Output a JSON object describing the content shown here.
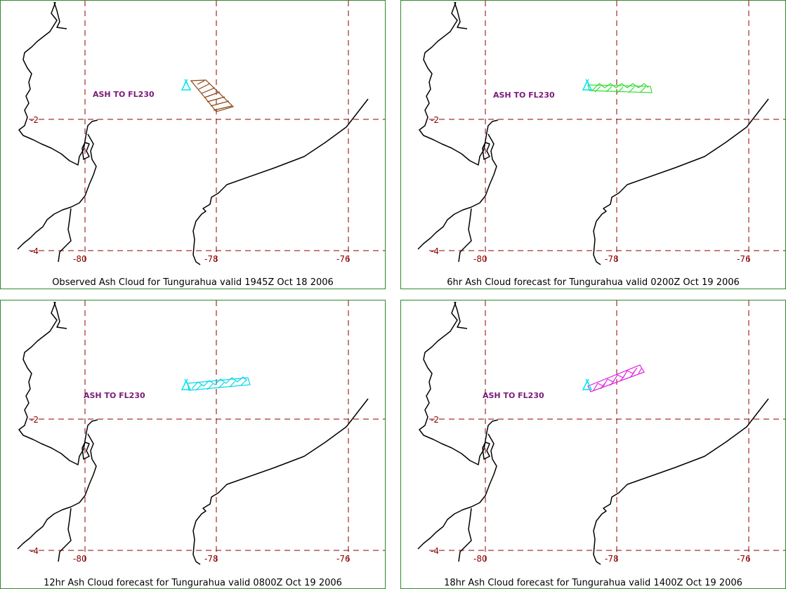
{
  "panels": [
    {
      "caption": "Observed Ash Cloud for Tungurahua valid 1945Z Oct 18 2006",
      "ash_label": "ASH TO FL230",
      "cloud_color": "#8b4513",
      "volcano_color": "#00e5ee",
      "grid_labels": {
        "lat_s2": "-2",
        "lat_s4": "-4",
        "lon_w80": "-80",
        "lon_w78": "-78",
        "lon_w76": "-76"
      }
    },
    {
      "caption": "6hr Ash Cloud forecast for Tungurahua valid 0200Z Oct 19 2006",
      "ash_label": "ASH TO FL230",
      "cloud_color": "#33dd33",
      "volcano_color": "#00e5ee",
      "grid_labels": {
        "lat_s2": "-2",
        "lat_s4": "-4",
        "lon_w80": "-80",
        "lon_w78": "-78",
        "lon_w76": "-76"
      }
    },
    {
      "caption": "12hr Ash Cloud forecast for Tungurahua valid 0800Z Oct 19 2006",
      "ash_label": "ASH TO FL230",
      "cloud_color": "#00d8e8",
      "volcano_color": "#00e5ee",
      "grid_labels": {
        "lat_s2": "-2",
        "lat_s4": "-4",
        "lon_w80": "-80",
        "lon_w78": "-78",
        "lon_w76": "-76"
      }
    },
    {
      "caption": "18hr Ash Cloud forecast for Tungurahua valid 1400Z Oct 19 2006",
      "ash_label": "ASH TO FL230",
      "cloud_color": "#e020e0",
      "volcano_color": "#00e5ee",
      "grid_labels": {
        "lat_s2": "-2",
        "lat_s4": "-4",
        "lon_w80": "-80",
        "lon_w78": "-78",
        "lon_w76": "-76"
      }
    }
  ],
  "colors": {
    "border": "#2e8b2e",
    "grid": "#8b0000",
    "coast": "#000000",
    "ash_label": "#7a1a7a"
  }
}
